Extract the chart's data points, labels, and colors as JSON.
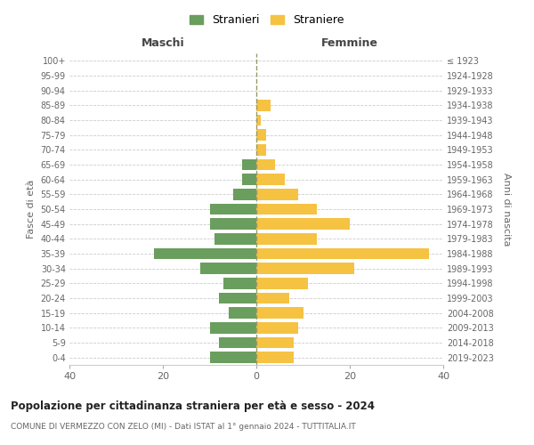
{
  "age_groups": [
    "0-4",
    "5-9",
    "10-14",
    "15-19",
    "20-24",
    "25-29",
    "30-34",
    "35-39",
    "40-44",
    "45-49",
    "50-54",
    "55-59",
    "60-64",
    "65-69",
    "70-74",
    "75-79",
    "80-84",
    "85-89",
    "90-94",
    "95-99",
    "100+"
  ],
  "birth_years": [
    "2019-2023",
    "2014-2018",
    "2009-2013",
    "2004-2008",
    "1999-2003",
    "1994-1998",
    "1989-1993",
    "1984-1988",
    "1979-1983",
    "1974-1978",
    "1969-1973",
    "1964-1968",
    "1959-1963",
    "1954-1958",
    "1949-1953",
    "1944-1948",
    "1939-1943",
    "1934-1938",
    "1929-1933",
    "1924-1928",
    "≤ 1923"
  ],
  "males": [
    10,
    8,
    10,
    6,
    8,
    7,
    12,
    22,
    9,
    10,
    10,
    5,
    3,
    3,
    0,
    0,
    0,
    0,
    0,
    0,
    0
  ],
  "females": [
    8,
    8,
    9,
    10,
    7,
    11,
    21,
    37,
    13,
    20,
    13,
    9,
    6,
    4,
    2,
    2,
    1,
    3,
    0,
    0,
    0
  ],
  "male_color": "#6a9e5e",
  "female_color": "#f5c242",
  "title": "Popolazione per cittadinanza straniera per età e sesso - 2024",
  "subtitle": "COMUNE DI VERMEZZO CON ZELO (MI) - Dati ISTAT al 1° gennaio 2024 - TUTTITALIA.IT",
  "legend_male": "Stranieri",
  "legend_female": "Straniere",
  "xlabel_left": "Maschi",
  "xlabel_right": "Femmine",
  "ylabel_left": "Fasce di età",
  "ylabel_right": "Anni di nascita",
  "xlim": 40,
  "background_color": "#ffffff",
  "bar_height": 0.75
}
